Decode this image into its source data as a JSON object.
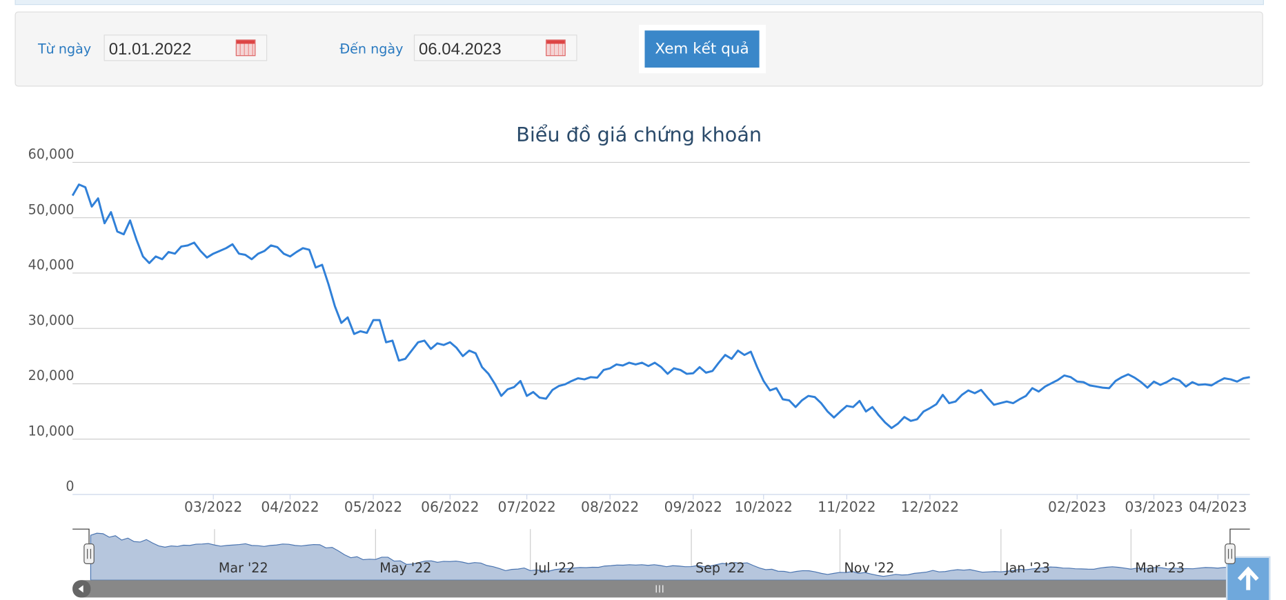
{
  "form": {
    "from_label": "Từ ngày",
    "from_value": "01.01.2022",
    "to_label": "Đến ngày",
    "to_value": "06.04.2023",
    "button": "Xem kết quả"
  },
  "chart_data": {
    "type": "line",
    "title": "Biểu đồ giá chứng khoán",
    "color": "#3080d8",
    "grid": true,
    "values": [
      54000,
      56000,
      55500,
      52000,
      53500,
      49000,
      51000,
      47500,
      47000,
      49500,
      46000,
      43000,
      41800,
      43000,
      42500,
      43800,
      43500,
      44800,
      45000,
      45500,
      44000,
      42800,
      43500,
      44000,
      44500,
      45200,
      43500,
      43300,
      42500,
      43500,
      44000,
      45000,
      44700,
      43500,
      43000,
      43800,
      44500,
      44200,
      41000,
      41500,
      38000,
      34000,
      31000,
      32000,
      29000,
      29500,
      29200,
      31500,
      31500,
      27500,
      27800,
      24200,
      24500,
      26000,
      27500,
      27800,
      26300,
      27300,
      27000,
      27500,
      26500,
      25000,
      26000,
      25500,
      23000,
      21800,
      20000,
      17800,
      19000,
      19400,
      20500,
      17800,
      18500,
      17500,
      17300,
      18900,
      19600,
      19900,
      20500,
      21000,
      20800,
      21200,
      21100,
      22500,
      22800,
      23500,
      23300,
      23800,
      23500,
      23800,
      23200,
      23800,
      23000,
      21800,
      22800,
      22500,
      21800,
      21900,
      23000,
      22000,
      22300,
      23800,
      25200,
      24500,
      26000,
      25200,
      25800,
      23000,
      20500,
      18800,
      19200,
      17200,
      17000,
      15800,
      17000,
      17800,
      17600,
      16500,
      15000,
      13900,
      15000,
      16000,
      15800,
      16900,
      15000,
      15800,
      14300,
      13000,
      12000,
      12800,
      14000,
      13300,
      13600,
      15000,
      15600,
      16300,
      18000,
      16500,
      16800,
      18000,
      18800,
      18300,
      18900,
      17500,
      16200,
      16500,
      16800,
      16500,
      17200,
      17800,
      19200,
      18600,
      19500,
      20100,
      20700,
      21500,
      21200,
      20400,
      20300,
      19700,
      19500,
      19300,
      19200,
      20500,
      21200,
      21700,
      21100,
      20300,
      19300,
      20400,
      19800,
      20300,
      21000,
      20600,
      19500,
      20300,
      19800,
      19900,
      19700,
      20400,
      21000,
      20800,
      20400,
      21000,
      21200
    ],
    "xlim": [
      0,
      184
    ],
    "xticks": [
      {
        "value": 22,
        "label": "03/2022"
      },
      {
        "value": 34,
        "label": "04/2022"
      },
      {
        "value": 47,
        "label": "05/2022"
      },
      {
        "value": 59,
        "label": "06/2022"
      },
      {
        "value": 71,
        "label": "07/2022"
      },
      {
        "value": 84,
        "label": "08/2022"
      },
      {
        "value": 97,
        "label": "09/2022"
      },
      {
        "value": 108,
        "label": "10/2022"
      },
      {
        "value": 121,
        "label": "11/2022"
      },
      {
        "value": 134,
        "label": "12/2022"
      },
      {
        "value": 157,
        "label": "02/2023"
      },
      {
        "value": 169,
        "label": "03/2023"
      },
      {
        "value": 179,
        "label": "04/2023"
      }
    ],
    "ylim": [
      0,
      60000
    ],
    "yticks": [
      0,
      {
        "value": 10000,
        "label": "10,000"
      },
      {
        "value": 20000,
        "label": "20,000"
      },
      {
        "value": 30000,
        "label": "30,000"
      },
      {
        "value": 40000,
        "label": "40,000"
      },
      {
        "value": 50000,
        "label": "50,000"
      },
      {
        "value": 60000,
        "label": "60,000"
      }
    ],
    "navigator": {
      "xticks": [
        {
          "value": 20,
          "label": "Mar '22"
        },
        {
          "value": 46,
          "label": "May '22"
        },
        {
          "value": 71,
          "label": "Jul '22"
        },
        {
          "value": 97,
          "label": "Sep '22"
        },
        {
          "value": 121,
          "label": "Nov '22"
        },
        {
          "value": 147,
          "label": "Jan '23"
        },
        {
          "value": 168,
          "label": "Mar '23"
        }
      ]
    }
  }
}
